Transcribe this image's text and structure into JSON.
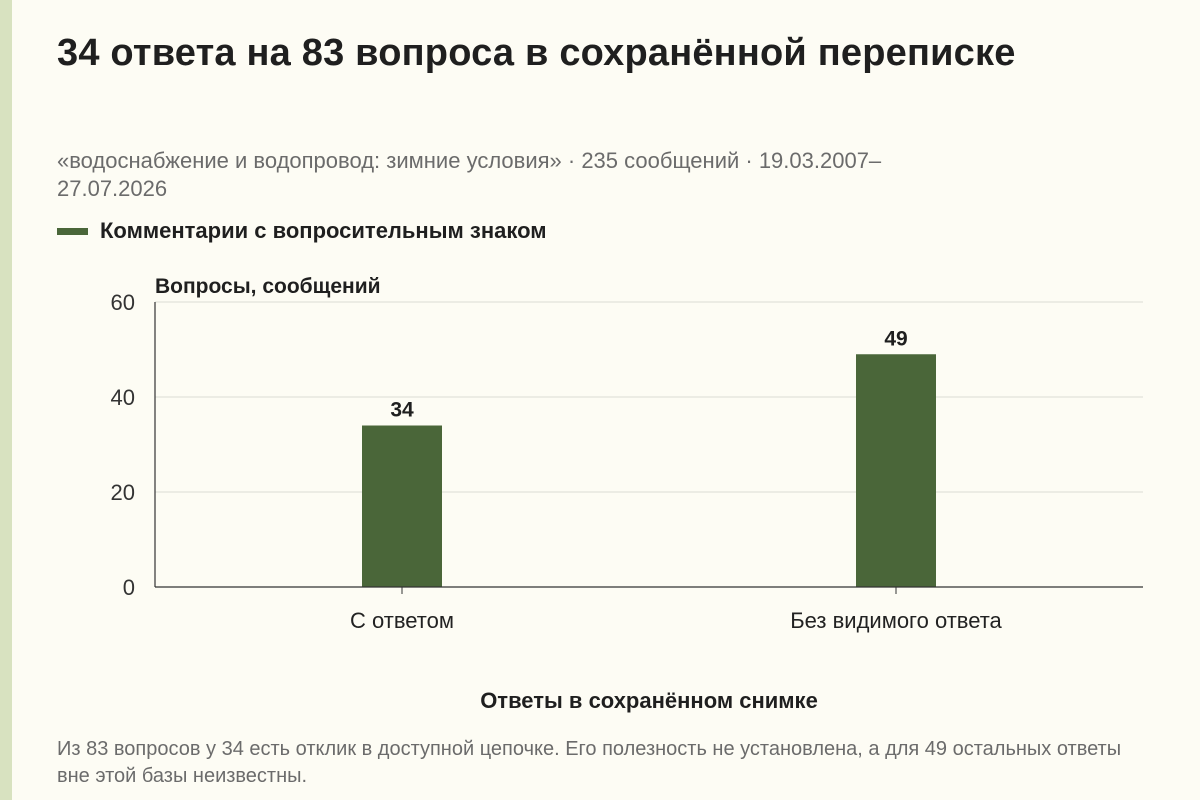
{
  "title": "34 ответа на 83 вопроса в сохранённой переписке",
  "subtitle": "«водоснабжение и водопровод: зимние условия» · 235 сообщений · 19.03.2007–27.07.2026",
  "legend_label": "Комментарии с вопросительным знаком",
  "footnote": "Из 83 вопросов у 34 есть отклик в доступной цепочке. Его полезность не установлена, а для 49 остальных ответы вне этой базы неизвестны.",
  "colors": {
    "bar": "#4a6639",
    "accent_strip": "#d8e2c0",
    "background": "#fdfcf4"
  },
  "chart_data": {
    "type": "bar",
    "categories": [
      "С ответом",
      "Без видимого ответа"
    ],
    "series": [
      {
        "name": "Комментарии с вопросительным знаком",
        "values": [
          34,
          49
        ]
      }
    ],
    "data_labels": [
      "34",
      "49"
    ],
    "ylabel": "Вопросы, сообщений",
    "xlabel": "Ответы в сохранённом снимке",
    "ylim": [
      0,
      60
    ],
    "yticks": [
      0,
      20,
      40,
      60
    ],
    "grid": true,
    "legend": "top-left"
  }
}
